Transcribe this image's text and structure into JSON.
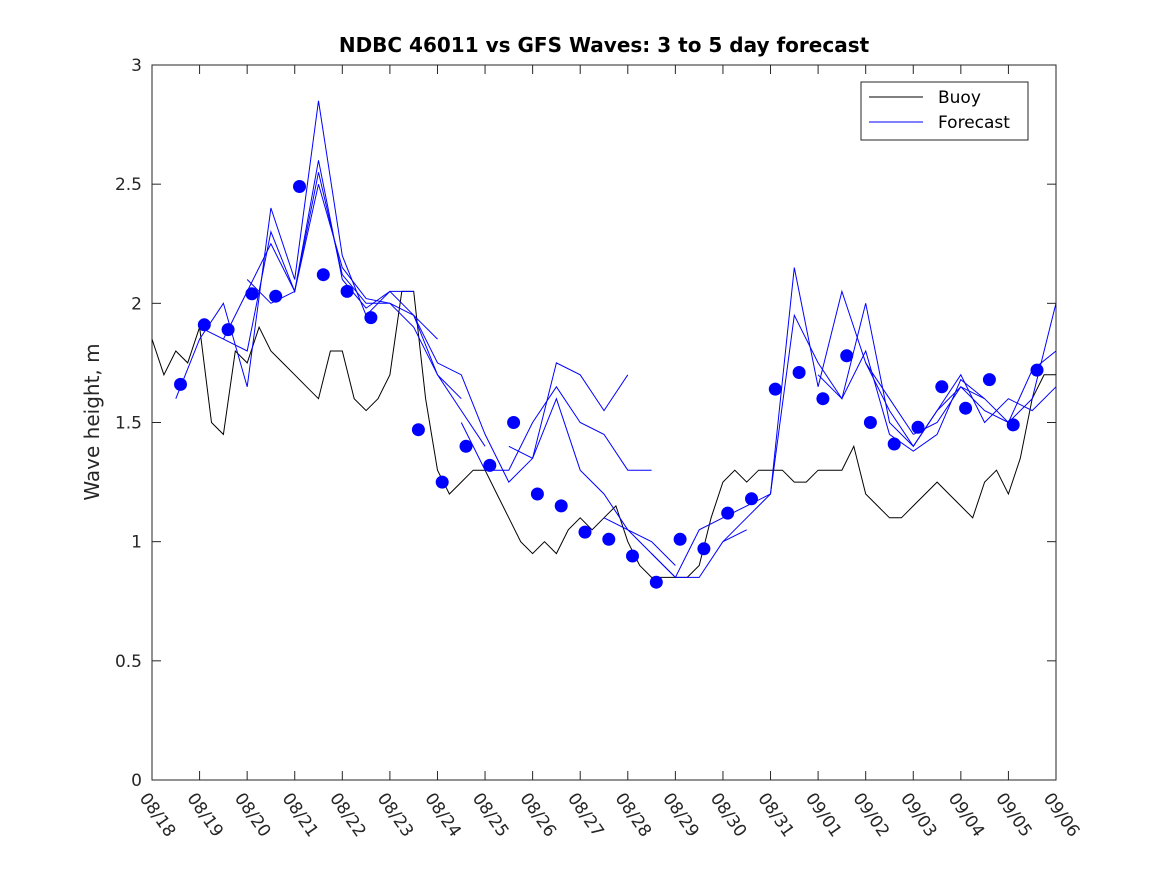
{
  "chart_data": {
    "type": "line",
    "title": "NDBC 46011 vs GFS Waves: 3 to 5 day forecast",
    "xlabel": "",
    "ylabel": "Wave height, m",
    "xlim": [
      0,
      19
    ],
    "ylim": [
      0,
      3
    ],
    "x_unit": "days since 08/18",
    "x_tick_labels": [
      "08/18",
      "08/19",
      "08/20",
      "08/21",
      "08/22",
      "08/23",
      "08/24",
      "08/25",
      "08/26",
      "08/27",
      "08/28",
      "08/29",
      "08/30",
      "08/31",
      "09/01",
      "09/02",
      "09/03",
      "09/04",
      "09/05",
      "09/06"
    ],
    "y_ticks": [
      0,
      0.5,
      1,
      1.5,
      2,
      2.5,
      3
    ],
    "y_tick_labels": [
      "0",
      "0.5",
      "1",
      "1.5",
      "2",
      "2.5",
      "3"
    ],
    "legend": {
      "position": "top-right",
      "entries": [
        {
          "label": "Buoy",
          "color": "#000000"
        },
        {
          "label": "Forecast",
          "color": "#0000ff"
        }
      ]
    },
    "series": [
      {
        "name": "Buoy",
        "color": "#000000",
        "x": [
          0,
          0.25,
          0.5,
          0.75,
          1,
          1.25,
          1.5,
          1.75,
          2,
          2.25,
          2.5,
          2.75,
          3,
          3.25,
          3.5,
          3.75,
          4,
          4.25,
          4.5,
          4.75,
          5,
          5.25,
          5.5,
          5.75,
          6,
          6.25,
          6.5,
          6.75,
          7,
          7.25,
          7.5,
          7.75,
          8,
          8.25,
          8.5,
          8.75,
          9,
          9.25,
          9.5,
          9.75,
          10,
          10.25,
          10.5,
          10.75,
          11,
          11.25,
          11.5,
          11.75,
          12,
          12.25,
          12.5,
          12.75,
          13,
          13.25,
          13.5,
          13.75,
          14,
          14.25,
          14.5,
          14.75,
          15,
          15.25,
          15.5,
          15.75,
          16,
          16.25,
          16.5,
          16.75,
          17,
          17.25,
          17.5,
          17.75,
          18,
          18.25,
          18.5,
          18.75,
          19
        ],
        "values": [
          1.85,
          1.7,
          1.8,
          1.75,
          1.9,
          1.5,
          1.45,
          1.8,
          1.75,
          1.9,
          1.8,
          1.75,
          1.7,
          1.65,
          1.6,
          1.8,
          1.8,
          1.6,
          1.55,
          1.6,
          1.7,
          2.05,
          2.05,
          1.6,
          1.3,
          1.2,
          1.25,
          1.3,
          1.3,
          1.2,
          1.1,
          1.0,
          0.95,
          1.0,
          0.95,
          1.05,
          1.1,
          1.05,
          1.1,
          1.15,
          1.0,
          0.9,
          0.85,
          0.85,
          0.85,
          0.85,
          0.9,
          1.1,
          1.25,
          1.3,
          1.25,
          1.3,
          1.3,
          1.3,
          1.25,
          1.25,
          1.3,
          1.3,
          1.3,
          1.4,
          1.2,
          1.15,
          1.1,
          1.1,
          1.15,
          1.2,
          1.25,
          1.2,
          1.15,
          1.1,
          1.25,
          1.3,
          1.2,
          1.35,
          1.6,
          1.7,
          1.7
        ]
      },
      {
        "name": "Forecast",
        "color": "#0000ff",
        "runs": [
          {
            "x": [
              0.5,
              1,
              1.5,
              2,
              2.5,
              3,
              3.5,
              4,
              4.5,
              5,
              5.5
            ],
            "values": [
              1.6,
              1.85,
              2.0,
              1.65,
              2.4,
              2.1,
              2.85,
              2.2,
              1.95,
              2.05,
              2.05
            ]
          },
          {
            "x": [
              1,
              1.5,
              2,
              2.5,
              3,
              3.5,
              4,
              4.5,
              5,
              5.5,
              6
            ],
            "values": [
              1.9,
              1.85,
              1.8,
              2.3,
              2.05,
              2.6,
              2.1,
              1.98,
              2.05,
              1.95,
              1.85
            ]
          },
          {
            "x": [
              1.5,
              2,
              2.5,
              3,
              3.5,
              4,
              4.5,
              5,
              5.5,
              6,
              6.5
            ],
            "values": [
              1.85,
              2.05,
              2.25,
              2.05,
              2.55,
              2.12,
              2.0,
              2.0,
              1.95,
              1.7,
              1.6
            ]
          },
          {
            "x": [
              2,
              2.5,
              3,
              3.5,
              4,
              4.5,
              5,
              5.5,
              6,
              6.5,
              7
            ],
            "values": [
              2.1,
              2.0,
              2.05,
              2.5,
              2.15,
              2.02,
              2.0,
              1.9,
              1.7,
              1.55,
              1.4
            ]
          },
          {
            "x": [
              5.5,
              6,
              6.5,
              7,
              7.5,
              8,
              8.5,
              9,
              9.5,
              10
            ],
            "values": [
              1.95,
              1.75,
              1.7,
              1.45,
              1.25,
              1.35,
              1.75,
              1.7,
              1.55,
              1.7
            ]
          },
          {
            "x": [
              6.5,
              7,
              7.5,
              8,
              8.5,
              9,
              9.5,
              10,
              10.5
            ],
            "values": [
              1.5,
              1.3,
              1.3,
              1.5,
              1.65,
              1.5,
              1.45,
              1.3,
              1.3
            ]
          },
          {
            "x": [
              7.5,
              8,
              8.5,
              9,
              9.5,
              10,
              10.5,
              11
            ],
            "values": [
              1.4,
              1.35,
              1.6,
              1.3,
              1.2,
              1.05,
              1.0,
              0.9
            ]
          },
          {
            "x": [
              9.5,
              10,
              10.5,
              11,
              11.5,
              12,
              12.5
            ],
            "values": [
              1.1,
              1.05,
              0.95,
              0.85,
              0.85,
              1.0,
              1.05
            ]
          },
          {
            "x": [
              10.5,
              11,
              11.5,
              12,
              12.5,
              13,
              13.5,
              14,
              14.5,
              15,
              15.5,
              16
            ],
            "values": [
              0.95,
              0.85,
              1.05,
              1.1,
              1.15,
              1.2,
              2.15,
              1.65,
              2.05,
              1.75,
              1.6,
              1.45
            ]
          },
          {
            "x": [
              12,
              12.5,
              13,
              13.5,
              14,
              14.5,
              15,
              15.5,
              16,
              16.5,
              17,
              17.5
            ],
            "values": [
              1.0,
              1.1,
              1.2,
              1.95,
              1.75,
              1.6,
              2.0,
              1.5,
              1.4,
              1.55,
              1.65,
              1.6
            ]
          },
          {
            "x": [
              14,
              14.5,
              15,
              15.5,
              16,
              16.5,
              17,
              17.5,
              18,
              18.5,
              19
            ],
            "values": [
              1.7,
              1.6,
              1.8,
              1.45,
              1.38,
              1.45,
              1.68,
              1.6,
              1.5,
              1.72,
              1.8
            ]
          },
          {
            "x": [
              15,
              15.5,
              16,
              16.5,
              17,
              17.5,
              18,
              18.5,
              19
            ],
            "values": [
              1.75,
              1.55,
              1.4,
              1.55,
              1.7,
              1.5,
              1.6,
              1.55,
              1.65
            ]
          },
          {
            "x": [
              16,
              16.5,
              17,
              17.5,
              18,
              18.5,
              19
            ],
            "values": [
              1.45,
              1.5,
              1.65,
              1.55,
              1.5,
              1.6,
              2.0
            ]
          }
        ]
      },
      {
        "name": "Forecast points",
        "color": "#0000ff",
        "x": [
          0.6,
          1.1,
          1.6,
          2.1,
          2.6,
          3.1,
          3.6,
          4.1,
          4.6,
          5.6,
          6.1,
          6.6,
          7.1,
          7.6,
          8.1,
          8.6,
          9.1,
          9.6,
          10.1,
          10.6,
          11.1,
          11.6,
          12.1,
          12.6,
          13.1,
          13.6,
          14.1,
          14.6,
          15.1,
          15.6,
          16.1,
          16.6,
          17.1,
          17.6,
          18.1,
          18.6
        ],
        "values": [
          1.66,
          1.91,
          1.89,
          2.04,
          2.03,
          2.49,
          2.12,
          2.05,
          1.94,
          1.47,
          1.25,
          1.4,
          1.32,
          1.5,
          1.2,
          1.15,
          1.04,
          1.01,
          0.94,
          0.83,
          1.01,
          0.97,
          1.12,
          1.18,
          1.64,
          1.71,
          1.6,
          1.78,
          1.5,
          1.41,
          1.48,
          1.65,
          1.56,
          1.68,
          1.49,
          1.72
        ]
      }
    ]
  }
}
